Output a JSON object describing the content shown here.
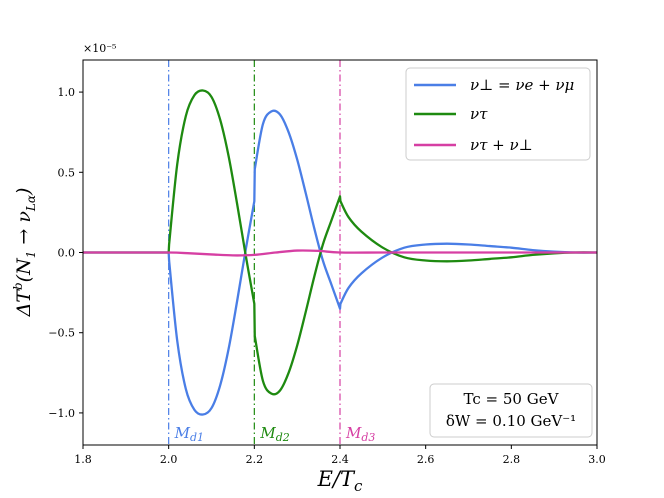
{
  "chart_data": {
    "type": "line",
    "xlabel": "E/T_c",
    "ylabel": "ΔT^b(N_1 → ν_{Lα})",
    "y_multiplier_label": "×10⁻⁵",
    "xlim": [
      1.8,
      3.0
    ],
    "ylim": [
      -1.2,
      1.2
    ],
    "x_ticks": [
      "1.8",
      "2.0",
      "2.2",
      "2.4",
      "2.6",
      "2.8",
      "3.0"
    ],
    "y_ticks": [
      "−1.0",
      "−0.5",
      "0.0",
      "0.5",
      "1.0"
    ],
    "grid": false,
    "legend_position": "top-right",
    "series": [
      {
        "name": "ν⊥ = νe + νμ",
        "color": "#4a7ee6",
        "x": [
          1.8,
          1.9,
          2.0,
          2.001,
          2.02,
          2.04,
          2.06,
          2.08,
          2.1,
          2.12,
          2.14,
          2.16,
          2.18,
          2.2,
          2.201,
          2.22,
          2.24,
          2.26,
          2.28,
          2.3,
          2.32,
          2.34,
          2.36,
          2.38,
          2.4,
          2.401,
          2.42,
          2.45,
          2.5,
          2.55,
          2.6,
          2.65,
          2.7,
          2.75,
          2.8,
          2.85,
          2.9,
          2.95,
          3.0
        ],
        "values": [
          0,
          0,
          0,
          -0.05,
          -0.55,
          -0.85,
          -0.98,
          -1.01,
          -0.97,
          -0.83,
          -0.6,
          -0.3,
          0.02,
          0.32,
          0.52,
          0.8,
          0.88,
          0.86,
          0.75,
          0.58,
          0.37,
          0.15,
          -0.05,
          -0.2,
          -0.35,
          -0.32,
          -0.22,
          -0.13,
          -0.03,
          0.03,
          0.05,
          0.055,
          0.05,
          0.04,
          0.03,
          0.015,
          0.005,
          0.0,
          0.0
        ]
      },
      {
        "name": "ντ",
        "color": "#1e8a10",
        "x": [
          1.8,
          1.9,
          2.0,
          2.001,
          2.02,
          2.04,
          2.06,
          2.08,
          2.1,
          2.12,
          2.14,
          2.16,
          2.18,
          2.2,
          2.201,
          2.22,
          2.24,
          2.26,
          2.28,
          2.3,
          2.32,
          2.34,
          2.36,
          2.38,
          2.4,
          2.401,
          2.42,
          2.45,
          2.5,
          2.55,
          2.6,
          2.65,
          2.7,
          2.75,
          2.8,
          2.85,
          2.9,
          2.95,
          3.0
        ],
        "values": [
          0,
          0,
          0,
          0.05,
          0.55,
          0.85,
          0.98,
          1.01,
          0.97,
          0.83,
          0.6,
          0.3,
          -0.02,
          -0.32,
          -0.52,
          -0.8,
          -0.88,
          -0.86,
          -0.75,
          -0.58,
          -0.37,
          -0.15,
          0.05,
          0.2,
          0.35,
          0.32,
          0.22,
          0.13,
          0.03,
          -0.03,
          -0.05,
          -0.055,
          -0.05,
          -0.04,
          -0.03,
          -0.015,
          -0.005,
          0.0,
          0.0
        ]
      },
      {
        "name": "ντ + ν⊥",
        "color": "#d63fa3",
        "x": [
          1.8,
          1.9,
          2.0,
          2.05,
          2.1,
          2.15,
          2.2,
          2.25,
          2.3,
          2.35,
          2.4,
          2.5,
          2.6,
          2.7,
          2.8,
          2.9,
          3.0
        ],
        "values": [
          0,
          0,
          0,
          -0.005,
          -0.012,
          -0.018,
          -0.015,
          0.0,
          0.012,
          0.01,
          0.0,
          0.0,
          0.0,
          0.0,
          0.0,
          0.0,
          0.0
        ]
      }
    ],
    "vlines": [
      {
        "x": 2.0,
        "label": "M_{d1}",
        "color": "#4a7ee6"
      },
      {
        "x": 2.2,
        "label": "M_{d2}",
        "color": "#1e8a10"
      },
      {
        "x": 2.4,
        "label": "M_{d3}",
        "color": "#d63fa3"
      }
    ],
    "annotation": [
      "Tc = 50 GeV",
      "δW = 0.10 GeV⁻¹"
    ]
  }
}
